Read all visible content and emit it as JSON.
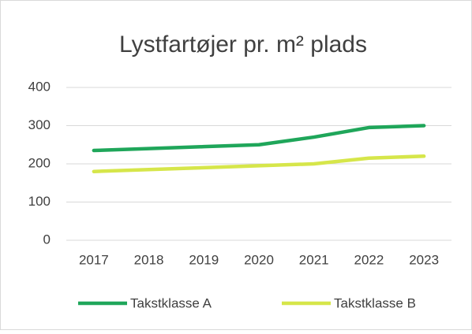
{
  "chart_data": {
    "type": "line",
    "title": "Lystfartøjer pr. m² plads",
    "categories": [
      "2017",
      "2018",
      "2019",
      "2020",
      "2021",
      "2022",
      "2023"
    ],
    "series": [
      {
        "name": "Takstklasse A",
        "color": "#1fa65a",
        "values": [
          235,
          240,
          245,
          250,
          270,
          295,
          300
        ]
      },
      {
        "name": "Takstklasse B",
        "color": "#d6e64a",
        "values": [
          180,
          185,
          190,
          195,
          200,
          215,
          220
        ]
      }
    ],
    "ylim": [
      0,
      400
    ],
    "yticks": [
      0,
      100,
      200,
      300,
      400
    ],
    "grid": true,
    "legend": "bottom"
  }
}
